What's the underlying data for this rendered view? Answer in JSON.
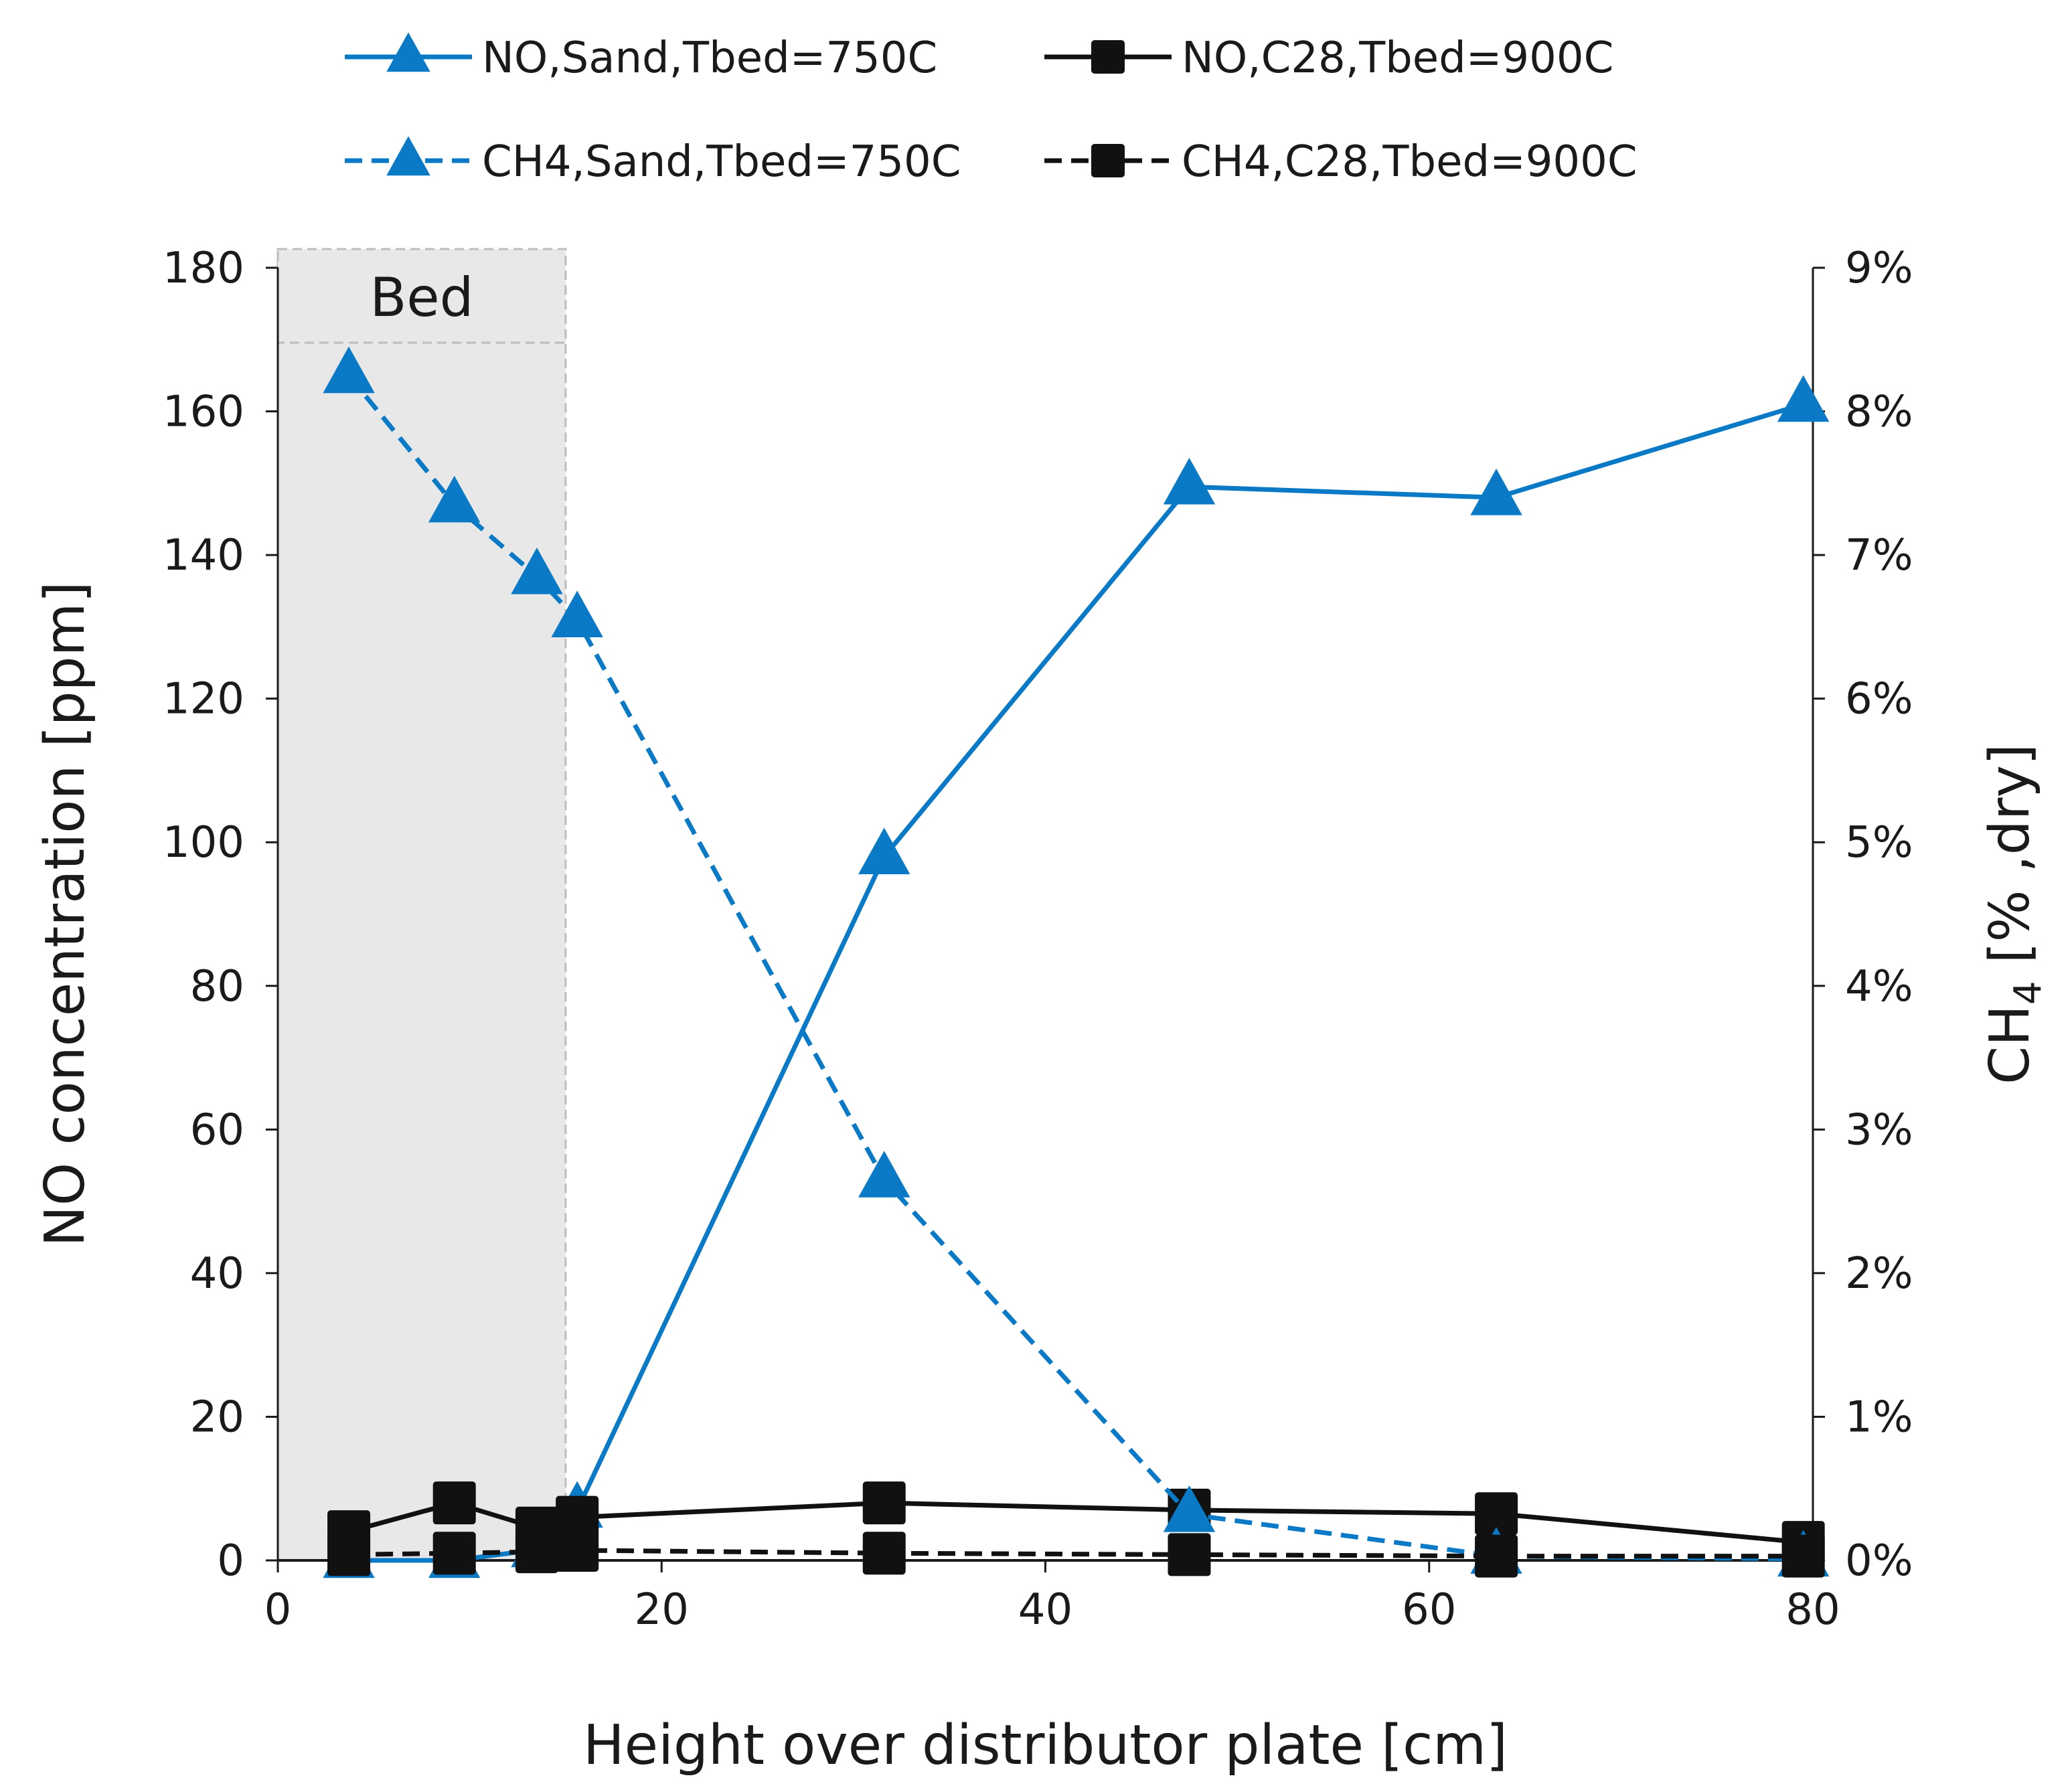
{
  "chart_data": {
    "type": "line",
    "title": "",
    "xlabel": "Height over distributor plate [cm]",
    "ylabel_left": "NO concentration [ppm]",
    "ylabel_right": "CH4 [% ,dry]",
    "ylabel_right_parts": {
      "main": "CH",
      "sub": "4",
      "rest": " [% ,dry]"
    },
    "xlim": [
      0,
      80
    ],
    "ylim_left": [
      0,
      180
    ],
    "ylim_right": [
      0,
      9
    ],
    "x_ticks": [
      "0",
      "20",
      "40",
      "60",
      "80"
    ],
    "y_left_ticks": [
      "0",
      "20",
      "40",
      "60",
      "80",
      "100",
      "120",
      "140",
      "160",
      "180"
    ],
    "y_right_ticks": [
      "0%",
      "1%",
      "2%",
      "3%",
      "4%",
      "5%",
      "6%",
      "7%",
      "8%",
      "9%"
    ],
    "bed_region": {
      "label": "Bed",
      "x_start": 0,
      "x_end": 15
    },
    "legend_position": "top",
    "colors": {
      "blue": "#0a79c6",
      "black": "#111111",
      "bed_fill": "#e8e8e8",
      "bed_border": "#bdbdbd"
    },
    "series": [
      {
        "name": "NO,Sand,Tbed=750C",
        "axis": "left",
        "color": "#0a79c6",
        "dash": "solid",
        "marker": "triangle",
        "x": [
          3.7,
          9.2,
          13.5,
          15.6,
          31.6,
          47.5,
          63.5,
          79.5
        ],
        "y": [
          0,
          0,
          1.5,
          7,
          98,
          149.5,
          148,
          161
        ]
      },
      {
        "name": "NO,C28,Tbed=900C",
        "axis": "left",
        "color": "#111111",
        "dash": "solid",
        "marker": "square",
        "x": [
          3.7,
          9.2,
          13.5,
          15.6,
          31.6,
          47.5,
          63.5,
          79.5
        ],
        "y": [
          4,
          8,
          4.5,
          6,
          8,
          7,
          6.5,
          2.5
        ]
      },
      {
        "name": "CH4,Sand,Tbed=750C",
        "axis": "right",
        "color": "#0a79c6",
        "dash": "dashed",
        "marker": "triangle",
        "x": [
          3.7,
          9.2,
          13.5,
          15.6,
          31.6,
          47.5,
          63.5,
          79.5
        ],
        "y": [
          8.25,
          7.35,
          6.85,
          6.55,
          2.65,
          0.32,
          0.03,
          0.01
        ]
      },
      {
        "name": "CH4,C28,Tbed=900C",
        "axis": "right",
        "color": "#111111",
        "dash": "dashed",
        "marker": "square",
        "x": [
          3.7,
          9.2,
          13.5,
          15.6,
          31.6,
          47.5,
          63.5,
          79.5
        ],
        "y": [
          0.04,
          0.05,
          0.06,
          0.07,
          0.05,
          0.04,
          0.03,
          0.03
        ]
      }
    ]
  }
}
